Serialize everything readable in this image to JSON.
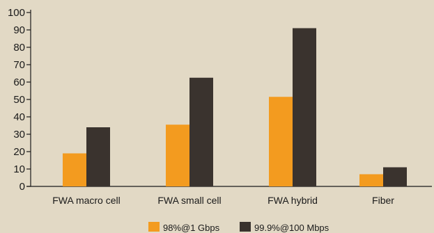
{
  "chart_data": {
    "type": "bar",
    "categories": [
      "FWA macro cell",
      "FWA small cell",
      "FWA hybrid",
      "Fiber"
    ],
    "series": [
      {
        "name": "98%@1 Gbps",
        "values": [
          19,
          35.5,
          51.5,
          7
        ],
        "color": "#f39b1f"
      },
      {
        "name": "99.9%@100 Mbps",
        "values": [
          34,
          62.5,
          91,
          11
        ],
        "color": "#3a332e"
      }
    ],
    "yticks": [
      0,
      10,
      20,
      30,
      40,
      50,
      60,
      70,
      80,
      90,
      100
    ],
    "ylim": [
      0,
      100
    ],
    "grid": false,
    "legend_position": "bottom-center",
    "background": "#e2d9c5",
    "axis_color": "#1a1a1a"
  }
}
